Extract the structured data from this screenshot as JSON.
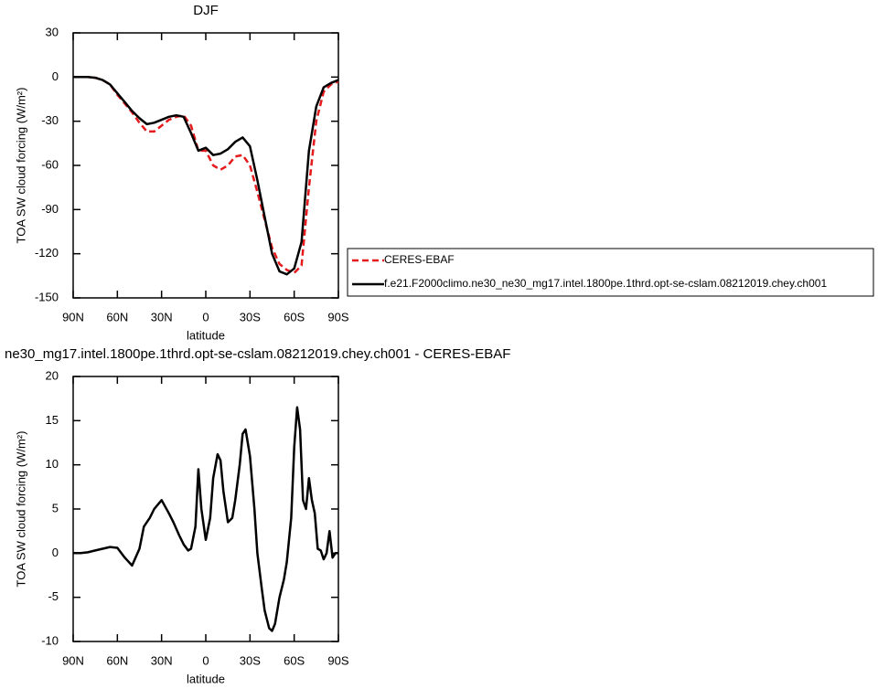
{
  "chart_data": [
    {
      "type": "line",
      "title": "DJF",
      "xlabel": "latitude",
      "ylabel": "TOA SW cloud forcing (W/m²)",
      "x": [
        90,
        85,
        80,
        75,
        70,
        65,
        60,
        55,
        50,
        45,
        40,
        35,
        30,
        25,
        20,
        15,
        10,
        5,
        0,
        -5,
        -10,
        -15,
        -20,
        -25,
        -30,
        -35,
        -40,
        -45,
        -50,
        -55,
        -60,
        -65,
        -70,
        -75,
        -80,
        -85,
        -90
      ],
      "series": [
        {
          "name": "CERES-EBAF",
          "color": "#e41a1c",
          "dash": true,
          "values": [
            0,
            0,
            0,
            -0.5,
            -2,
            -5,
            -12,
            -18,
            -24,
            -31,
            -37,
            -37,
            -33,
            -29,
            -27,
            -26,
            -33,
            -50,
            -50,
            -60,
            -63,
            -60,
            -54,
            -53,
            -60,
            -78,
            -97,
            -116,
            -127,
            -131,
            -133,
            -128,
            -75,
            -30,
            -10,
            -5,
            -3
          ]
        },
        {
          "name": "f.e21.F2000climo.ne30_ne30_mg17.intel.1800pe.1thrd.opt-se-cslam.08212019.chey.ch001",
          "color": "#000000",
          "dash": false,
          "values": [
            0,
            0,
            0,
            -0.5,
            -2,
            -5,
            -11,
            -17,
            -23,
            -28,
            -32,
            -31,
            -29,
            -27,
            -26,
            -27,
            -38,
            -50,
            -48,
            -53,
            -52,
            -49,
            -44,
            -41,
            -47,
            -70,
            -95,
            -120,
            -132,
            -134,
            -130,
            -112,
            -50,
            -20,
            -7,
            -4,
            -2
          ]
        }
      ],
      "xlim": [
        90,
        -90
      ],
      "xticks": [
        {
          "value": 90,
          "label": "90N"
        },
        {
          "value": 60,
          "label": "60N"
        },
        {
          "value": 30,
          "label": "30N"
        },
        0,
        {
          "value": -30,
          "label": "30S"
        },
        {
          "value": -60,
          "label": "60S"
        },
        {
          "value": -90,
          "label": "90S"
        }
      ],
      "ylim": [
        -150,
        30
      ],
      "yticks": [
        -150,
        -120,
        -90,
        -60,
        -30,
        0,
        30
      ],
      "legend": "right"
    },
    {
      "type": "line",
      "title": "ne30_mg17.intel.1800pe.1thrd.opt-se-cslam.08212019.chey.ch001 - CERES-EBAF",
      "xlabel": "latitude",
      "ylabel": "TOA SW cloud forcing (W/m²)",
      "x": [
        90,
        85,
        80,
        75,
        70,
        65,
        60,
        55,
        50,
        45,
        42,
        38,
        35,
        30,
        25,
        22,
        18,
        15,
        12,
        10,
        7,
        5,
        3,
        0,
        -3,
        -5,
        -8,
        -10,
        -12,
        -15,
        -18,
        -20,
        -23,
        -25,
        -27,
        -30,
        -33,
        -35,
        -38,
        -40,
        -43,
        -45,
        -47,
        -50,
        -53,
        -55,
        -58,
        -60,
        -62,
        -64,
        -66,
        -68,
        -70,
        -72,
        -74,
        -76,
        -78,
        -80,
        -82,
        -84,
        -86,
        -88,
        -90
      ],
      "values": [
        0,
        0,
        0.1,
        0.3,
        0.5,
        0.7,
        0.6,
        -0.5,
        -1.4,
        0.5,
        3,
        4,
        5,
        6,
        4.5,
        3.5,
        2,
        1,
        0.3,
        0.5,
        3,
        9.5,
        5,
        1.5,
        4,
        8.5,
        11.2,
        10.5,
        7,
        3.5,
        4,
        6,
        10,
        13.5,
        14,
        11,
        5,
        0,
        -4,
        -6.5,
        -8.5,
        -8.8,
        -8,
        -5,
        -3,
        -1,
        4,
        12,
        16.5,
        14,
        6,
        5,
        8.5,
        6,
        4.5,
        0.5,
        0.3,
        -0.7,
        0,
        2.5,
        -0.5,
        0,
        0
      ],
      "color": "#000000",
      "xlim": [
        90,
        -90
      ],
      "xticks": [
        {
          "value": 90,
          "label": "90N"
        },
        {
          "value": 60,
          "label": "60N"
        },
        {
          "value": 30,
          "label": "30N"
        },
        0,
        {
          "value": -30,
          "label": "30S"
        },
        {
          "value": -60,
          "label": "60S"
        },
        {
          "value": -90,
          "label": "90S"
        }
      ],
      "ylim": [
        -10,
        20
      ],
      "yticks": [
        -10,
        -5,
        0,
        5,
        10,
        15,
        20
      ]
    }
  ]
}
